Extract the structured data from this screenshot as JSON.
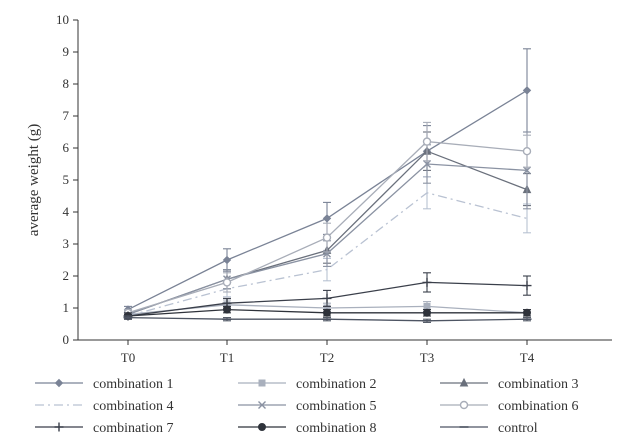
{
  "chart_data": {
    "type": "line",
    "title": "",
    "xlabel": "",
    "ylabel": "average weight (g)",
    "categories": [
      "T0",
      "T1",
      "T2",
      "T3",
      "T4"
    ],
    "ylim": [
      0,
      10
    ],
    "yticks": [
      "0",
      "1",
      "2",
      "3",
      "4",
      "5",
      "6",
      "7",
      "8",
      "9",
      "10"
    ],
    "grid": false,
    "legend": "bottom",
    "error_bars": true,
    "series": [
      {
        "name": "combination 1",
        "values": [
          0.95,
          2.5,
          3.8,
          5.9,
          7.8
        ],
        "err": [
          0.1,
          0.35,
          0.5,
          0.8,
          1.3
        ],
        "color": "#7a8396",
        "marker": "diamond",
        "dash": "none"
      },
      {
        "name": "combination 2",
        "values": [
          0.8,
          1.1,
          1.0,
          1.05,
          0.85
        ],
        "err": [
          0.1,
          0.15,
          0.15,
          0.15,
          0.1
        ],
        "color": "#a9b0bd",
        "marker": "square",
        "dash": "none"
      },
      {
        "name": "combination 3",
        "values": [
          0.8,
          1.9,
          2.8,
          5.9,
          4.7
        ],
        "err": [
          0.1,
          0.3,
          0.4,
          0.6,
          0.5
        ],
        "color": "#6a707c",
        "marker": "triangle",
        "dash": "none"
      },
      {
        "name": "combination 4",
        "values": [
          0.75,
          1.6,
          2.2,
          4.6,
          3.8
        ],
        "err": [
          0.1,
          0.25,
          0.35,
          0.5,
          0.45
        ],
        "color": "#b9c2d2",
        "marker": "none",
        "dash": "9,4,2,4"
      },
      {
        "name": "combination 5",
        "values": [
          0.8,
          1.9,
          2.7,
          5.5,
          5.3
        ],
        "err": [
          0.1,
          0.3,
          0.4,
          0.6,
          1.2
        ],
        "color": "#8a92a2",
        "marker": "x",
        "dash": "none"
      },
      {
        "name": "combination 6",
        "values": [
          0.85,
          1.8,
          3.2,
          6.2,
          5.9
        ],
        "err": [
          0.1,
          0.3,
          0.45,
          0.6,
          0.5
        ],
        "color": "#a8adb8",
        "marker": "circle-open",
        "dash": "none"
      },
      {
        "name": "combination 7",
        "values": [
          0.75,
          1.15,
          1.3,
          1.8,
          1.7
        ],
        "err": [
          0.1,
          0.15,
          0.25,
          0.3,
          0.3
        ],
        "color": "#3a3f4a",
        "marker": "plus",
        "dash": "none"
      },
      {
        "name": "combination 8",
        "values": [
          0.75,
          0.95,
          0.85,
          0.85,
          0.85
        ],
        "err": [
          0.05,
          0.1,
          0.1,
          0.1,
          0.1
        ],
        "color": "#2f333b",
        "marker": "circle",
        "dash": "none"
      },
      {
        "name": "control",
        "values": [
          0.7,
          0.65,
          0.65,
          0.6,
          0.65
        ],
        "err": [
          0.05,
          0.05,
          0.05,
          0.05,
          0.05
        ],
        "color": "#4e5563",
        "marker": "dash",
        "dash": "none"
      }
    ]
  }
}
